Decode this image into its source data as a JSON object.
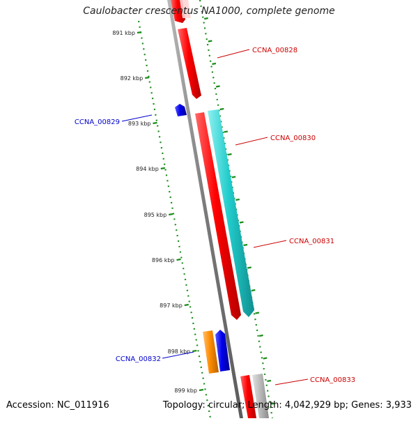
{
  "title": "Caulobacter crescentus NA1000, complete genome",
  "footer": {
    "accession": "Accession: NC_011916",
    "info": "Topology: circular; Length: 4,042,929 bp; Genes: 3,933"
  },
  "colors": {
    "backbone": "#8a8a8a",
    "tick_dots": "#1a8c1a",
    "minus_strand_label": "#0000cc",
    "plus_strand_label": "#cc0000"
  },
  "ruler_labels": [
    "891 kbp",
    "892 kbp",
    "893 kbp",
    "894 kbp",
    "895 kbp",
    "896 kbp",
    "897 kbp",
    "898 kbp",
    "899 kbp"
  ],
  "genes": [
    {
      "name": "CCNA_00828",
      "color": "#ee0000",
      "label_color": "#cc0000",
      "icon": "red-arrow"
    },
    {
      "name": "CCNA_00829",
      "color": "#0000dd",
      "label_color": "#0000cc",
      "icon": "blue-arrow"
    },
    {
      "name": "CCNA_00830",
      "color": "#ee0000",
      "label_color": "#cc0000",
      "icon": "red-arrow"
    },
    {
      "name": "CCNA_00831",
      "color": "#22cccc",
      "label_color": "#cc0000",
      "icon": "cyan-arrow"
    },
    {
      "name": "CCNA_00832",
      "color": "#ff8c00",
      "label_color": "#0000cc",
      "icon": "orange-block"
    },
    {
      "name": "CCNA_00833",
      "color": "#ee0000",
      "label_color": "#cc0000",
      "icon": "red-arrow"
    }
  ]
}
